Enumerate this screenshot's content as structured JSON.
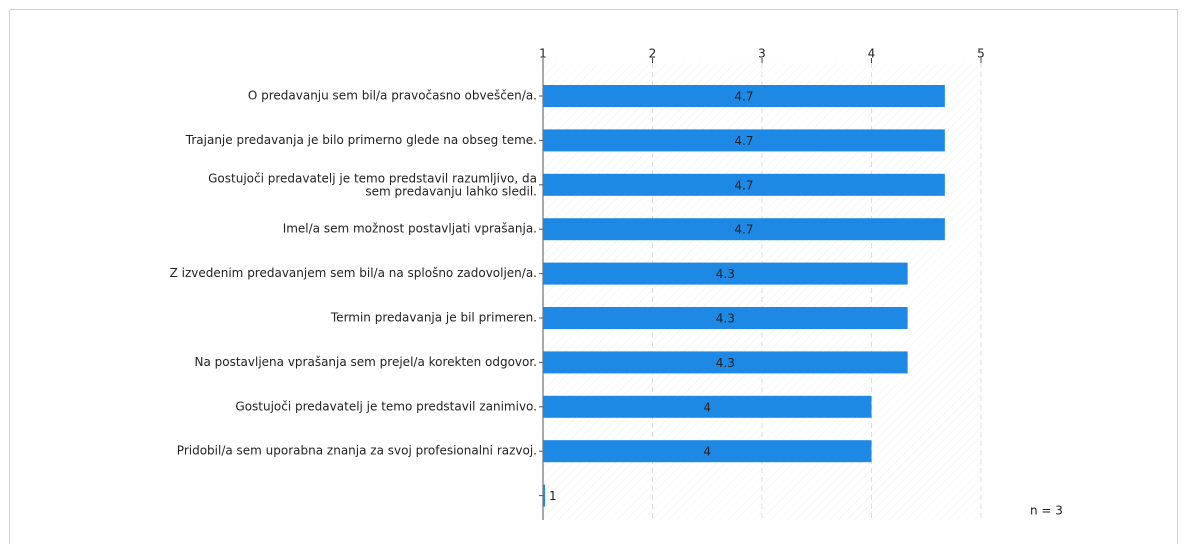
{
  "chart_data": {
    "type": "bar",
    "orientation": "horizontal",
    "categories": [
      "O predavanju sem bil/a pravočasno obveščen/a.",
      "Trajanje predavanja je bilo primerno glede na obseg teme.",
      "Gostujoči predavatelj je temo predstavil razumljivo, da\nsem predavanju lahko sledil.",
      "Imel/a sem možnost postavljati vprašanja.",
      "Z izvedenim predavanjem sem bil/a na splošno zadovoljen/a.",
      "Termin predavanja je bil primeren.",
      "Na postavljena vprašanja sem prejel/a korekten odgovor.",
      "Gostujoči predavatelj je temo predstavil zanimivo.",
      "Pridobil/a sem uporabna znanja za svoj profesionalni razvoj.",
      null
    ],
    "values": [
      4.67,
      4.67,
      4.67,
      4.67,
      4.33,
      4.33,
      4.33,
      4,
      4,
      1
    ],
    "value_labels": [
      "4.7",
      "4.7",
      "4.7",
      "4.7",
      "4.3",
      "4.3",
      "4.3",
      "4",
      "4",
      "1"
    ],
    "color": "#1e88e5",
    "xlim": [
      1,
      5
    ],
    "xticks": [
      1,
      2,
      3,
      4,
      5
    ],
    "grid": true,
    "annotation": "n = 3"
  }
}
